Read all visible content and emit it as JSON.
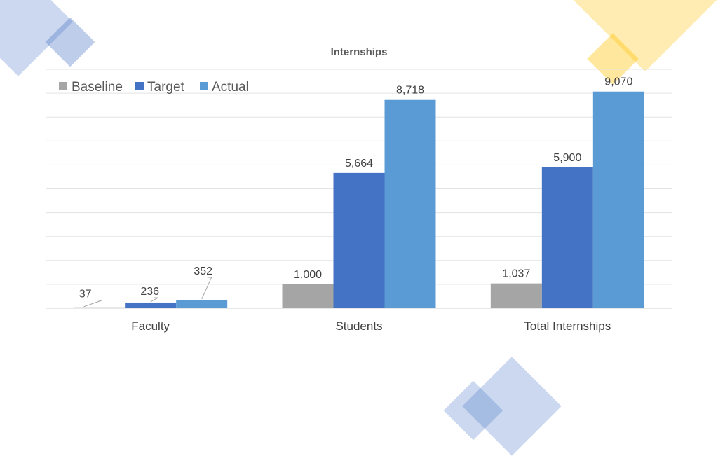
{
  "chart_data": {
    "type": "bar",
    "title": "Internships",
    "categories": [
      "Faculty",
      "Students",
      "Total Internships"
    ],
    "series": [
      {
        "name": "Baseline",
        "color": "#a5a5a5",
        "values": [
          37,
          1000,
          1037
        ]
      },
      {
        "name": "Target",
        "color": "#4472c4",
        "values": [
          236,
          5664,
          5900
        ]
      },
      {
        "name": "Actual",
        "color": "#5b9bd5",
        "values": [
          352,
          8718,
          9070
        ]
      }
    ],
    "data_labels": [
      [
        "37",
        "1,000",
        "1,037"
      ],
      [
        "236",
        "5,664",
        "5,900"
      ],
      [
        "352",
        "8,718",
        "9,070"
      ]
    ],
    "ylim": [
      0,
      10000
    ],
    "grid": true,
    "legend": "top-left",
    "xlabel": "",
    "ylabel": ""
  },
  "decoration_colors": {
    "blue": "#4472c4",
    "yellow": "#ffc000"
  }
}
